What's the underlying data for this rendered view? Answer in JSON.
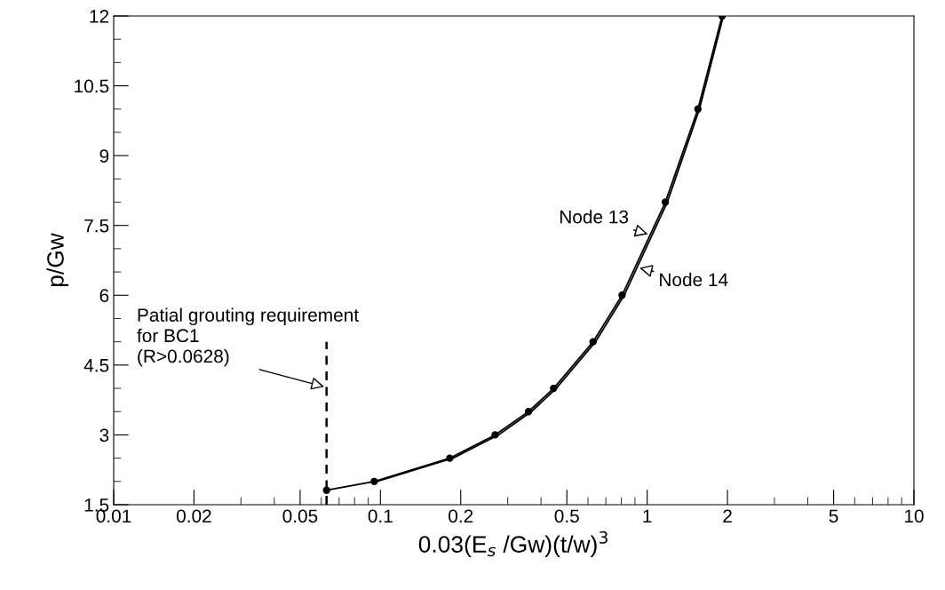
{
  "chart_data": {
    "type": "line",
    "xlabel": "0.03(E$_{s}$ /Gw)(t/w)$^{3}$",
    "ylabel": "p/Gw",
    "log": "x",
    "xlim": [
      0.01,
      10
    ],
    "xticks": [
      0.01,
      0.02,
      0.05,
      0.1,
      0.2,
      0.5,
      1,
      2,
      5,
      10
    ],
    "ylim": [
      1.5,
      12
    ],
    "yticks": [
      1.5,
      3,
      4.5,
      6,
      7.5,
      9,
      10.5,
      12
    ],
    "grid": false,
    "line_style": "solid",
    "series": [
      {
        "name": "Node 13",
        "color": "#000000",
        "marker": "circle",
        "x": [
          0.0628,
          0.0948,
          0.182,
          0.269,
          0.359,
          0.446,
          0.627,
          0.805,
          1.17,
          1.55,
          1.91
        ],
        "values": [
          1.81,
          2,
          2.5,
          3,
          3.5,
          4,
          5,
          6,
          8,
          10,
          12
        ]
      },
      {
        "name": "Node 14",
        "color": "#000000",
        "marker": "none",
        "x": [
          0.097,
          0.187,
          0.277,
          0.368,
          0.456,
          0.64,
          0.82,
          1.19,
          1.57,
          1.93
        ],
        "values": [
          2,
          2.5,
          3,
          3.5,
          4,
          5,
          6,
          8,
          10,
          12
        ]
      }
    ],
    "ref_lines": [
      {
        "axis": "x",
        "value": 0.0628,
        "label": "Patial grouting requirement\nfor BC1\n(R>0.0628)",
        "color": "#000000",
        "line_style": "dashed"
      }
    ]
  }
}
